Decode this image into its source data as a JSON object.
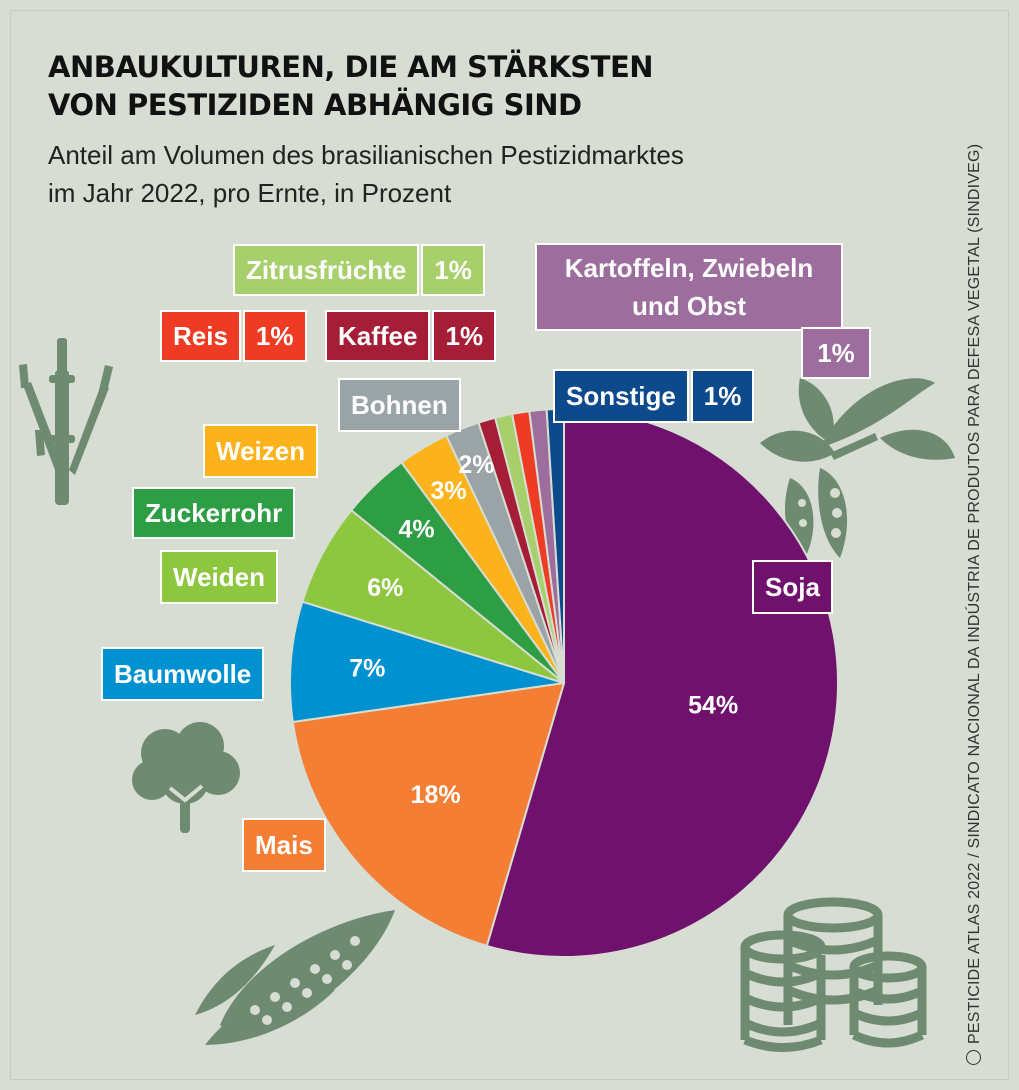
{
  "title_lines": [
    "ANBAUKULTUREN, DIE AM STÄRKSTEN",
    "VON PESTIZIDEN ABHÄNGIG SIND"
  ],
  "subtitle_lines": [
    "Anteil am Volumen des brasilianischen Pestizidmarktes",
    "im Jahr 2022, pro Ernte, in Prozent"
  ],
  "source": "PESTICIDE ATLAS 2022 / SINDICATO NACIONAL DA INDÚSTRIA DE PRODUTOS PARA DEFESA VEGETAL (SINDIVEG)",
  "chart_data": {
    "type": "pie",
    "unit": "%",
    "slices": [
      {
        "name": "Soja",
        "value": 54,
        "label": "54%",
        "color": "#6f116d"
      },
      {
        "name": "Mais",
        "value": 18,
        "label": "18%",
        "color": "#f47e34"
      },
      {
        "name": "Baumwolle",
        "value": 7,
        "label": "7%",
        "color": "#0092d0"
      },
      {
        "name": "Weiden",
        "value": 6,
        "label": "6%",
        "color": "#8dc63f"
      },
      {
        "name": "Zuckerrohr",
        "value": 4,
        "label": "4%",
        "color": "#2e9e45"
      },
      {
        "name": "Weizen",
        "value": 3,
        "label": "3%",
        "color": "#fbb21b"
      },
      {
        "name": "Bohnen",
        "value": 2,
        "label": "2%",
        "color": "#9aa3a6"
      },
      {
        "name": "Kaffee",
        "value": 1,
        "label": "1%",
        "color": "#a51d36"
      },
      {
        "name": "Zitrusfrüchte",
        "value": 1,
        "label": "1%",
        "color": "#a7cf6b"
      },
      {
        "name": "Reis",
        "value": 1,
        "label": "1%",
        "color": "#ee3b24"
      },
      {
        "name": "Kartoffeln, Zwiebeln und Obst",
        "value": 1,
        "label": "1%",
        "color": "#9c6d9d"
      },
      {
        "name": "Sonstige",
        "value": 1,
        "label": "1%",
        "color": "#0d4a8c"
      }
    ]
  },
  "icon_color": "#6e8b71",
  "icons": [
    "sugarcane-icon",
    "bean-plant-icon",
    "cotton-icon",
    "corn-icon",
    "coins-icon"
  ]
}
